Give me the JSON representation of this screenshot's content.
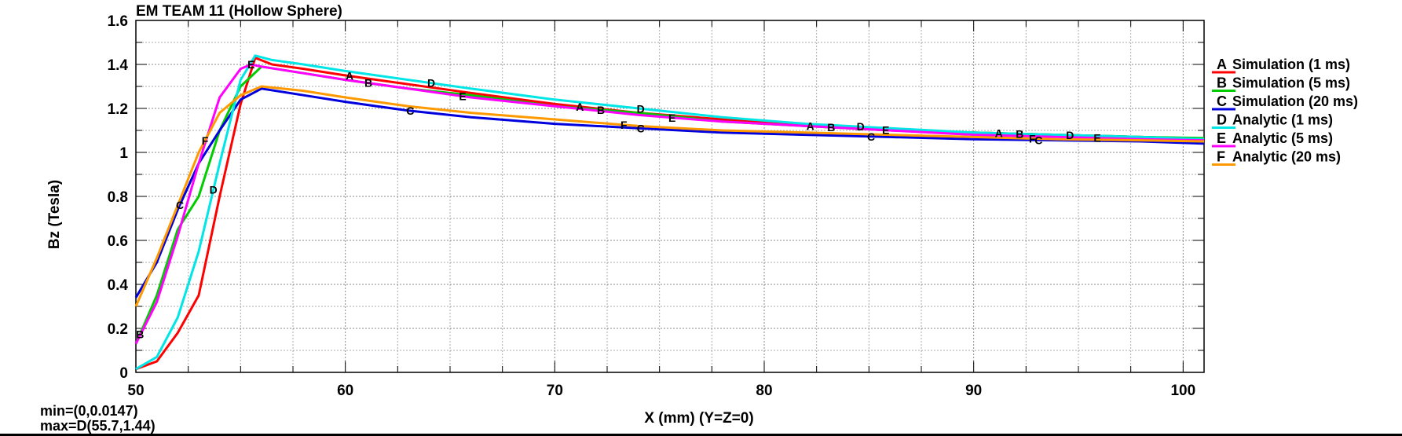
{
  "chart_data": {
    "type": "line",
    "title": "EM TEAM 11 (Hollow Sphere)",
    "xlabel": "X (mm) (Y=Z=0)",
    "ylabel": "Bz (Tesla)",
    "xlim": [
      50,
      101
    ],
    "ylim": [
      0,
      1.6
    ],
    "grid": true,
    "legend_position": "right",
    "x_ticks": [
      50,
      60,
      70,
      80,
      90,
      100
    ],
    "x_tick_labels": [
      "50",
      "60",
      "70",
      "80",
      "90",
      "100"
    ],
    "y_ticks": [
      0,
      0.2,
      0.4,
      0.6,
      0.8,
      1,
      1.2,
      1.4,
      1.6
    ],
    "y_tick_labels": [
      "0",
      "0.2",
      "0.4",
      "0.6",
      "0.8",
      "1",
      "1.2",
      "1.4",
      "1.6"
    ],
    "min_text": "min=(0,0.0147)",
    "max_text": "max=D(55.7,1.44)",
    "series": [
      {
        "marker": "A",
        "name": "Simulation (1 ms)",
        "color": "#ff0000",
        "x": [
          50,
          51,
          52,
          53,
          54,
          55,
          55.7,
          56.5,
          58,
          60,
          63,
          66,
          70,
          74,
          78,
          82,
          86,
          90,
          94,
          98,
          101
        ],
        "y": [
          0.015,
          0.05,
          0.18,
          0.35,
          0.8,
          1.22,
          1.43,
          1.4,
          1.38,
          1.35,
          1.31,
          1.27,
          1.22,
          1.18,
          1.15,
          1.12,
          1.1,
          1.09,
          1.08,
          1.07,
          1.06
        ],
        "marker_x": [
          60.2,
          71.2,
          82.2,
          91.2
        ]
      },
      {
        "marker": "B",
        "name": "Simulation (5 ms)",
        "color": "#00cc00",
        "x": [
          50,
          51,
          52,
          53,
          54,
          55,
          56,
          58,
          60,
          63,
          66,
          70,
          74,
          78,
          82,
          86,
          90,
          94,
          98,
          101
        ],
        "y": [
          0.13,
          0.35,
          0.65,
          0.8,
          1.1,
          1.3,
          1.39,
          1.36,
          1.33,
          1.29,
          1.26,
          1.21,
          1.18,
          1.14,
          1.12,
          1.1,
          1.09,
          1.08,
          1.07,
          1.065
        ],
        "marker_x": [
          50.2,
          61.1,
          72.2,
          83.2,
          92.2
        ]
      },
      {
        "marker": "C",
        "name": "Simulation (20 ms)",
        "color": "#0000dd",
        "x": [
          50,
          51,
          52,
          53,
          54,
          55,
          56,
          58,
          60,
          63,
          66,
          70,
          74,
          78,
          82,
          86,
          90,
          94,
          98,
          101
        ],
        "y": [
          0.34,
          0.5,
          0.74,
          0.95,
          1.1,
          1.24,
          1.29,
          1.26,
          1.23,
          1.19,
          1.16,
          1.13,
          1.11,
          1.09,
          1.08,
          1.07,
          1.06,
          1.055,
          1.05,
          1.04
        ],
        "marker_x": [
          52.1,
          63.1,
          74.1,
          85.1,
          93.1
        ]
      },
      {
        "marker": "D",
        "name": "Analytic (1 ms)",
        "color": "#00e5e5",
        "x": [
          50,
          51,
          52,
          53,
          54,
          55,
          55.7,
          56.5,
          58,
          60,
          63,
          66,
          70,
          74,
          78,
          82,
          86,
          90,
          94,
          98,
          101
        ],
        "y": [
          0.015,
          0.07,
          0.25,
          0.55,
          0.95,
          1.33,
          1.44,
          1.42,
          1.4,
          1.37,
          1.33,
          1.29,
          1.24,
          1.2,
          1.16,
          1.13,
          1.11,
          1.09,
          1.08,
          1.07,
          1.06
        ],
        "marker_x": [
          53.7,
          64.1,
          74.1,
          84.6,
          94.6
        ]
      },
      {
        "marker": "E",
        "name": "Analytic (5 ms)",
        "color": "#ff00ff",
        "x": [
          50,
          51,
          52,
          53,
          54,
          55,
          55.5,
          56,
          58,
          60,
          63,
          66,
          70,
          74,
          78,
          82,
          86,
          90,
          94,
          98,
          101
        ],
        "y": [
          0.13,
          0.32,
          0.62,
          0.95,
          1.25,
          1.38,
          1.4,
          1.39,
          1.36,
          1.33,
          1.29,
          1.25,
          1.21,
          1.17,
          1.14,
          1.12,
          1.1,
          1.08,
          1.07,
          1.06,
          1.055
        ],
        "marker_x": [
          55.5,
          65.6,
          75.6,
          85.8,
          95.9
        ]
      },
      {
        "marker": "F",
        "name": "Analytic (20 ms)",
        "color": "#ff9900",
        "x": [
          50,
          51,
          52,
          53,
          54,
          55,
          56,
          58,
          60,
          63,
          66,
          70,
          74,
          78,
          82,
          86,
          90,
          94,
          98,
          101
        ],
        "y": [
          0.3,
          0.52,
          0.76,
          1.0,
          1.18,
          1.26,
          1.3,
          1.28,
          1.25,
          1.21,
          1.18,
          1.15,
          1.12,
          1.1,
          1.09,
          1.08,
          1.07,
          1.06,
          1.055,
          1.05
        ],
        "marker_x": [
          53.3,
          73.3,
          92.8
        ]
      }
    ]
  }
}
